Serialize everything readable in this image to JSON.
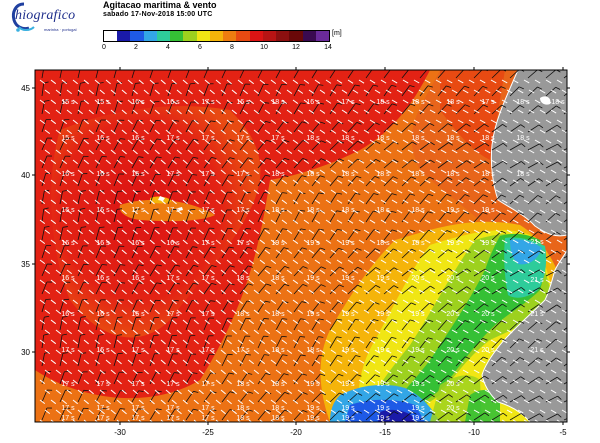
{
  "logo": {
    "name": "hiografico",
    "sub": "marinha · portugal"
  },
  "title": "Agitacao maritima & vento",
  "subtitle": "sabado 17-Nov-2018 15:00 UTC",
  "colorbar": {
    "unit": "[m]",
    "colors": [
      "#ffffff",
      "#1a1aa8",
      "#1e5ae6",
      "#33a6e6",
      "#2ecc9a",
      "#35c035",
      "#9dd11e",
      "#f0e614",
      "#f5b40a",
      "#ee7d10",
      "#e84a12",
      "#dc1414",
      "#b81414",
      "#8c1010",
      "#6a0808",
      "#3a0a50",
      "#6a2a9a"
    ],
    "ticks": [
      "0",
      "2",
      "4",
      "6",
      "8",
      "10",
      "12",
      "14"
    ]
  },
  "axes": {
    "lat_ticks": [
      "45",
      "40",
      "35",
      "30"
    ],
    "lon_ticks": [
      "-30",
      "-25",
      "-20",
      "-15",
      "-10",
      "-5"
    ]
  },
  "period_rows": [
    [
      "15 s",
      "15 s",
      "16 s",
      "16 s",
      "17 s",
      "16 s",
      "18 s",
      "16 s",
      "17 s",
      "18 s",
      "18 s",
      "18 s",
      "17 s",
      "18 s",
      "18 s"
    ],
    [
      "15 s",
      "16 s",
      "16 s",
      "17 s",
      "17 s",
      "17 s",
      "17 s",
      "18 s",
      "18 s",
      "18 s",
      "18 s",
      "18 s",
      "18 s",
      "18 s",
      ""
    ],
    [
      "16 s",
      "16 s",
      "16 s",
      "17 s",
      "17 s",
      "17 s",
      "18 s",
      "18 s",
      "18 s",
      "18 s",
      "18 s",
      "18 s",
      "18 s",
      "18 s",
      ""
    ],
    [
      "16 s",
      "16 s",
      "17 s",
      "17 s",
      "17 s",
      "17 s",
      "18 s",
      "18 s",
      "18 s",
      "18 s",
      "18 s",
      "19 s",
      "19 s",
      "",
      ""
    ],
    [
      "16 s",
      "16 s",
      "16 s",
      "16 s",
      "17 s",
      "17 s",
      "19 s",
      "19 s",
      "19 s",
      "18 s",
      "18 s",
      "19 s",
      "19 s",
      "",
      ""
    ],
    [
      "16 s",
      "16 s",
      "16 s",
      "17 s",
      "17 s",
      "18 s",
      "18 s",
      "19 s",
      "19 s",
      "19 s",
      "20 s",
      "20 s",
      "20 s",
      "",
      ""
    ],
    [
      "16 s",
      "16 s",
      "16 s",
      "17 s",
      "17 s",
      "18 s",
      "18 s",
      "19 s",
      "19 s",
      "19 s",
      "19 s",
      "20 s",
      "20 s",
      "",
      ""
    ],
    [
      "17 s",
      "16 s",
      "17 s",
      "17 s",
      "17 s",
      "17 s",
      "18 s",
      "18 s",
      "19 s",
      "19 s",
      "19 s",
      "20 s",
      "20 s",
      "",
      ""
    ],
    [
      "17 s",
      "17 s",
      "17 s",
      "17 s",
      "17 s",
      "18 s",
      "18 s",
      "19 s",
      "19 s",
      "19 s",
      "19 s",
      "20 s",
      "",
      "",
      ""
    ],
    [
      "17 s",
      "17 s",
      "17 s",
      "17 s",
      "17 s",
      "18 s",
      "18 s",
      "19 s",
      "19 s",
      "19 s",
      "19 s",
      "20 s",
      "",
      "",
      ""
    ],
    [
      "17 s",
      "17 s",
      "17 s",
      "17 s",
      "17 s",
      "18 s",
      "18 s",
      "19 s",
      "19 s",
      "19 s",
      "19 s",
      "",
      "",
      "",
      ""
    ]
  ],
  "east_labels": [
    "21 s",
    "21 s",
    "21 s",
    "21 s"
  ]
}
